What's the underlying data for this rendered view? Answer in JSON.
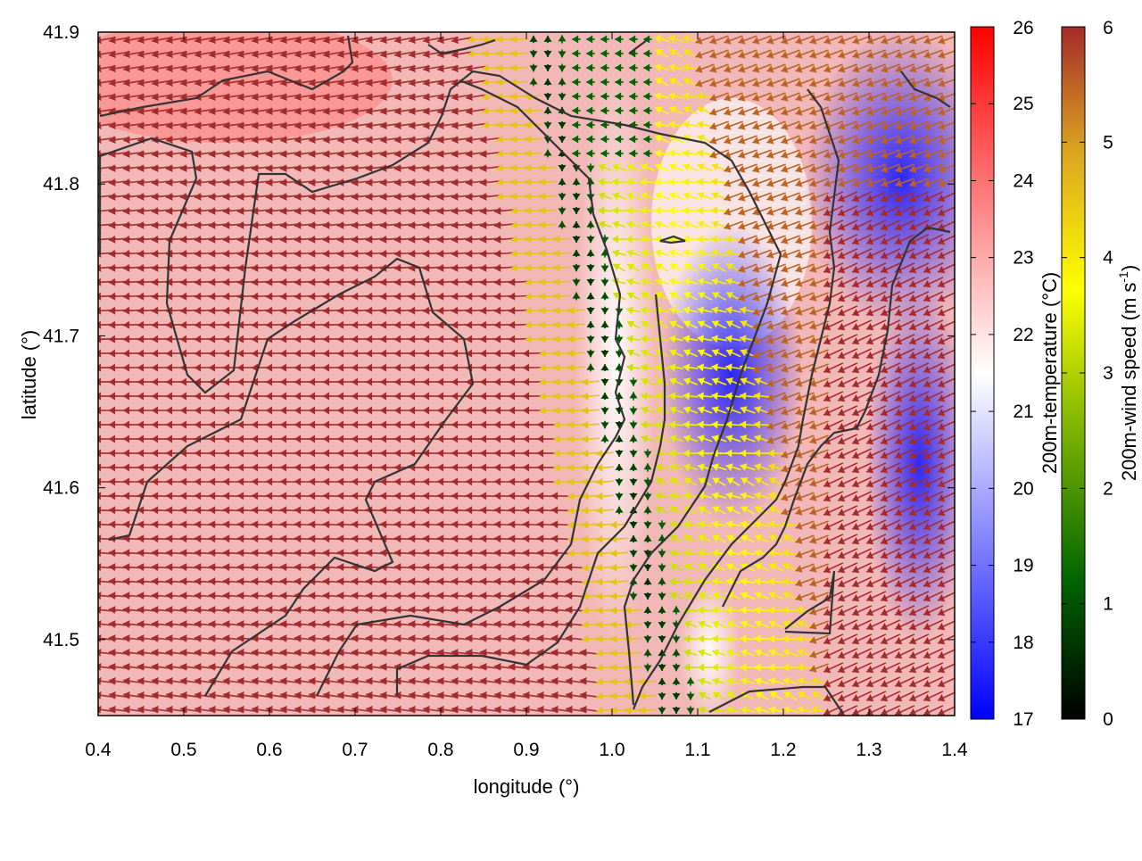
{
  "chart_data": {
    "type": "heatmap",
    "title": "",
    "xlabel": "longitude (°)",
    "ylabel": "latitude (°)",
    "xlim": [
      0.4,
      1.4
    ],
    "ylim": [
      41.45,
      41.9
    ],
    "x_ticks": [
      "0.4",
      "0.5",
      "0.6",
      "0.7",
      "0.8",
      "0.9",
      "1.0",
      "1.1",
      "1.2",
      "1.3",
      "1.4"
    ],
    "y_ticks": [
      "41.5",
      "41.6",
      "41.7",
      "41.8",
      "41.9"
    ],
    "temperature_colorbar": {
      "label": "200m-temperature (°C)",
      "min": 17,
      "max": 26,
      "ticks": [
        "17",
        "18",
        "19",
        "20",
        "21",
        "22",
        "23",
        "24",
        "25",
        "26"
      ],
      "colors": [
        "#0000ff",
        "#ffffff",
        "#ff0000"
      ]
    },
    "wind_colorbar": {
      "label_main": "200m-wind speed (m s",
      "label_sup": "-1",
      "label_end": ")",
      "min": 0,
      "max": 6,
      "ticks": [
        "0",
        "1",
        "2",
        "3",
        "4",
        "5",
        "6"
      ],
      "colors": [
        "#000000",
        "#006400",
        "#8fbf00",
        "#ffff00",
        "#daa520",
        "#a52a2a"
      ]
    },
    "fields": {
      "cold_zone": {
        "lon_range": [
          1.05,
          1.4
        ],
        "lat_range": [
          41.52,
          41.9
        ],
        "temperature_c": 18
      },
      "warm_zone": {
        "lon_range": [
          0.4,
          0.95
        ],
        "lat_range": [
          41.45,
          41.9
        ],
        "temperature_c": 23.5
      },
      "west_wind": {
        "direction": "westward",
        "speed_ms": 6
      },
      "convergence_line": {
        "lon_approx": 1.0,
        "speed_ms": 0.5
      }
    },
    "contour_color": "#333333"
  }
}
